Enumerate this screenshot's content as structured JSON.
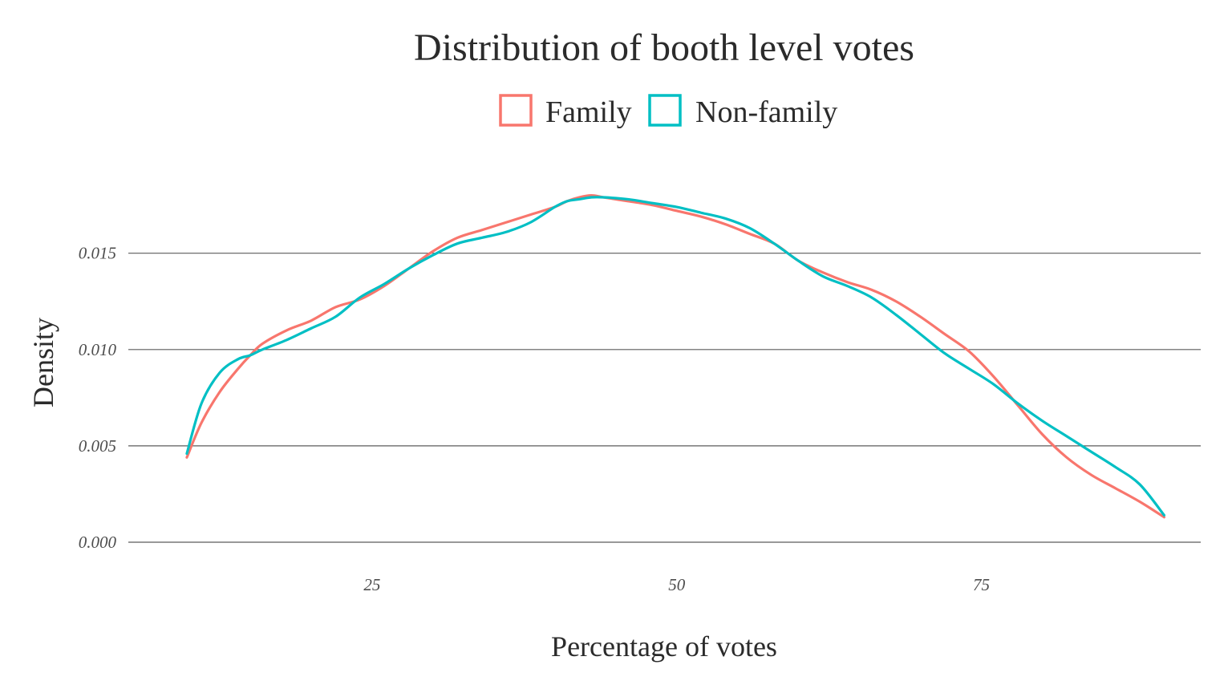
{
  "chart_data": {
    "type": "line",
    "title": "Distribution of booth level votes",
    "xlabel": "Percentage of votes",
    "ylabel": "Density",
    "xlim": [
      5,
      93
    ],
    "ylim": [
      0,
      0.0194
    ],
    "x_ticks": [
      25,
      50,
      75
    ],
    "x_tick_labels": [
      "25",
      "50",
      "75"
    ],
    "y_ticks": [
      0,
      0.005,
      0.01,
      0.015
    ],
    "y_tick_labels": [
      "0.000",
      "0.005",
      "0.010",
      "0.015"
    ],
    "grid": "horizontal",
    "legend_position": "top",
    "series": [
      {
        "name": "Family",
        "color": "#F8766D",
        "x": [
          9.8,
          11,
          12.5,
          14,
          15,
          16,
          18,
          20,
          22,
          24,
          26,
          28,
          30,
          32,
          34,
          36,
          38,
          40,
          41,
          42,
          43,
          44,
          46,
          48,
          50,
          52,
          54,
          56,
          58,
          60,
          62,
          64,
          66,
          68,
          70,
          72,
          74,
          76,
          78,
          80,
          82,
          84,
          86,
          88,
          90
        ],
        "y": [
          0.0044,
          0.0062,
          0.0078,
          0.009,
          0.0097,
          0.0103,
          0.011,
          0.0115,
          0.0122,
          0.0126,
          0.0133,
          0.0142,
          0.0151,
          0.0158,
          0.0162,
          0.0166,
          0.017,
          0.0174,
          0.0177,
          0.0179,
          0.018,
          0.0179,
          0.0177,
          0.0175,
          0.0172,
          0.0169,
          0.0165,
          0.016,
          0.0155,
          0.0146,
          0.014,
          0.0135,
          0.0131,
          0.0125,
          0.0117,
          0.0108,
          0.0099,
          0.0086,
          0.0071,
          0.0056,
          0.0044,
          0.0035,
          0.0028,
          0.0021,
          0.0013
        ]
      },
      {
        "name": "Non-family",
        "color": "#00BFC4",
        "x": [
          9.8,
          11,
          12.5,
          14,
          15,
          16,
          18,
          20,
          22,
          24,
          26,
          28,
          30,
          32,
          34,
          36,
          38,
          40,
          41,
          42,
          43,
          44,
          46,
          48,
          50,
          52,
          54,
          56,
          58,
          60,
          62,
          64,
          66,
          68,
          70,
          72,
          74,
          76,
          78,
          80,
          82,
          84,
          86,
          88,
          90
        ],
        "y": [
          0.0046,
          0.0072,
          0.0088,
          0.0095,
          0.0097,
          0.01,
          0.0105,
          0.0111,
          0.0117,
          0.0127,
          0.0134,
          0.0142,
          0.0149,
          0.0155,
          0.0158,
          0.0161,
          0.0166,
          0.0174,
          0.0177,
          0.0178,
          0.0179,
          0.0179,
          0.0178,
          0.0176,
          0.0174,
          0.0171,
          0.0168,
          0.0163,
          0.0155,
          0.0146,
          0.0138,
          0.0133,
          0.0127,
          0.0118,
          0.0108,
          0.0098,
          0.009,
          0.0082,
          0.0072,
          0.0063,
          0.0055,
          0.0047,
          0.0039,
          0.003,
          0.0014
        ]
      }
    ]
  }
}
